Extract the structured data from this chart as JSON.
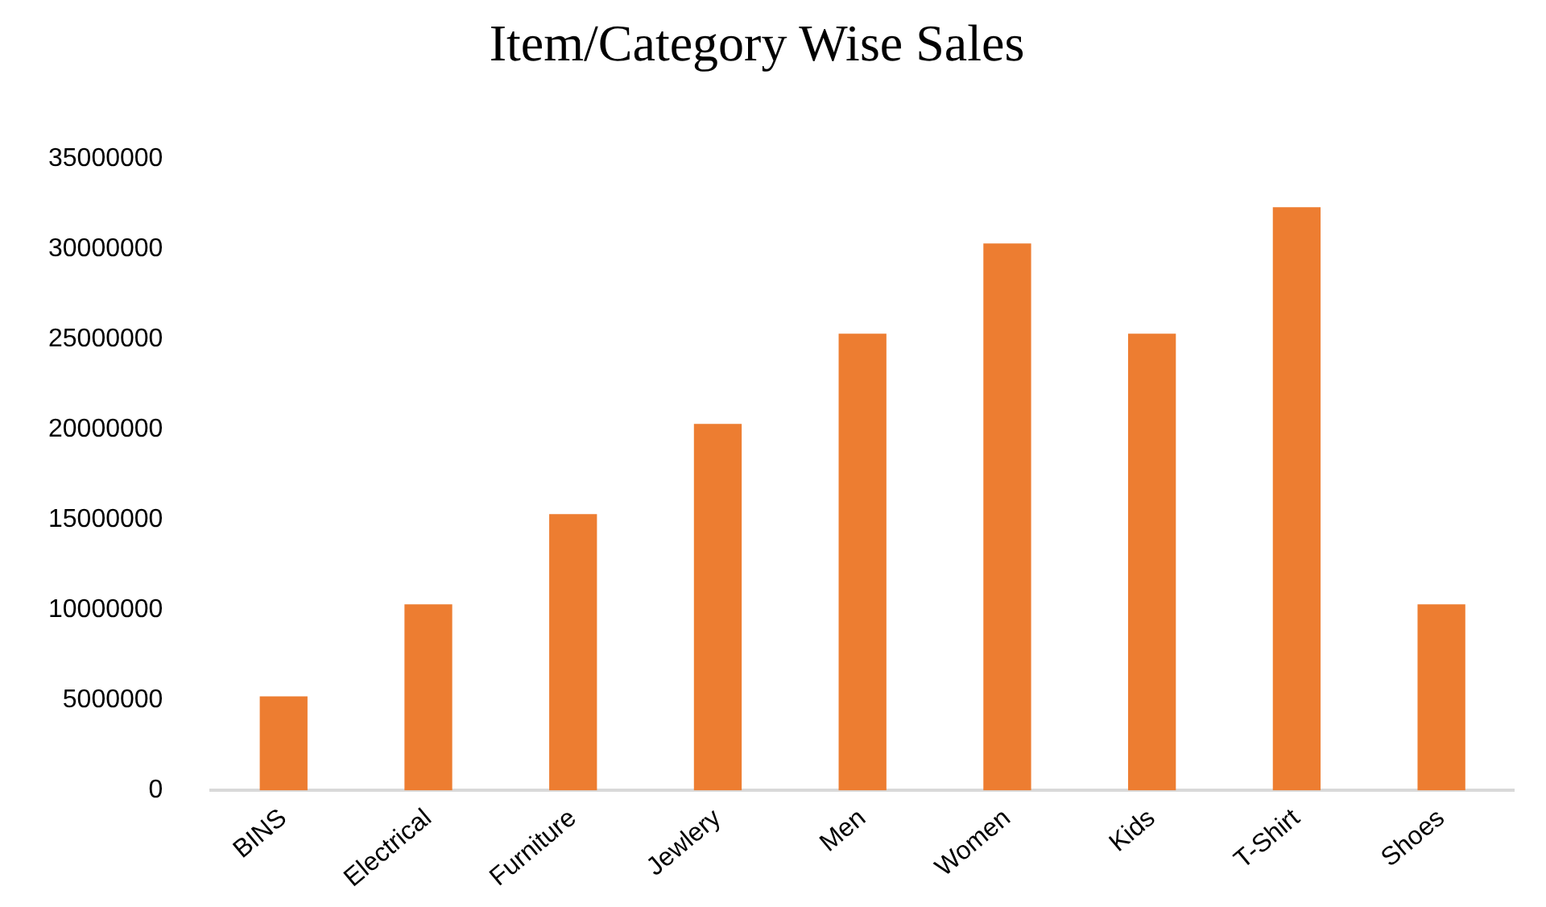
{
  "chart_data": {
    "type": "bar",
    "title": "Item/Category Wise Sales",
    "categories": [
      "BINS",
      "Electrical",
      "Furniture",
      "Jewlery",
      "Men",
      "Women",
      "Kids",
      "T-Shirt",
      "Shoes"
    ],
    "values": [
      5200000,
      10300000,
      15300000,
      20300000,
      25300000,
      30300000,
      25300000,
      32300000,
      10300000
    ],
    "color": "#ed7d31",
    "ylim": [
      0,
      35000000
    ],
    "yticks": [
      0,
      5000000,
      10000000,
      15000000,
      20000000,
      25000000,
      30000000,
      35000000
    ],
    "grid": false,
    "legend": false
  }
}
